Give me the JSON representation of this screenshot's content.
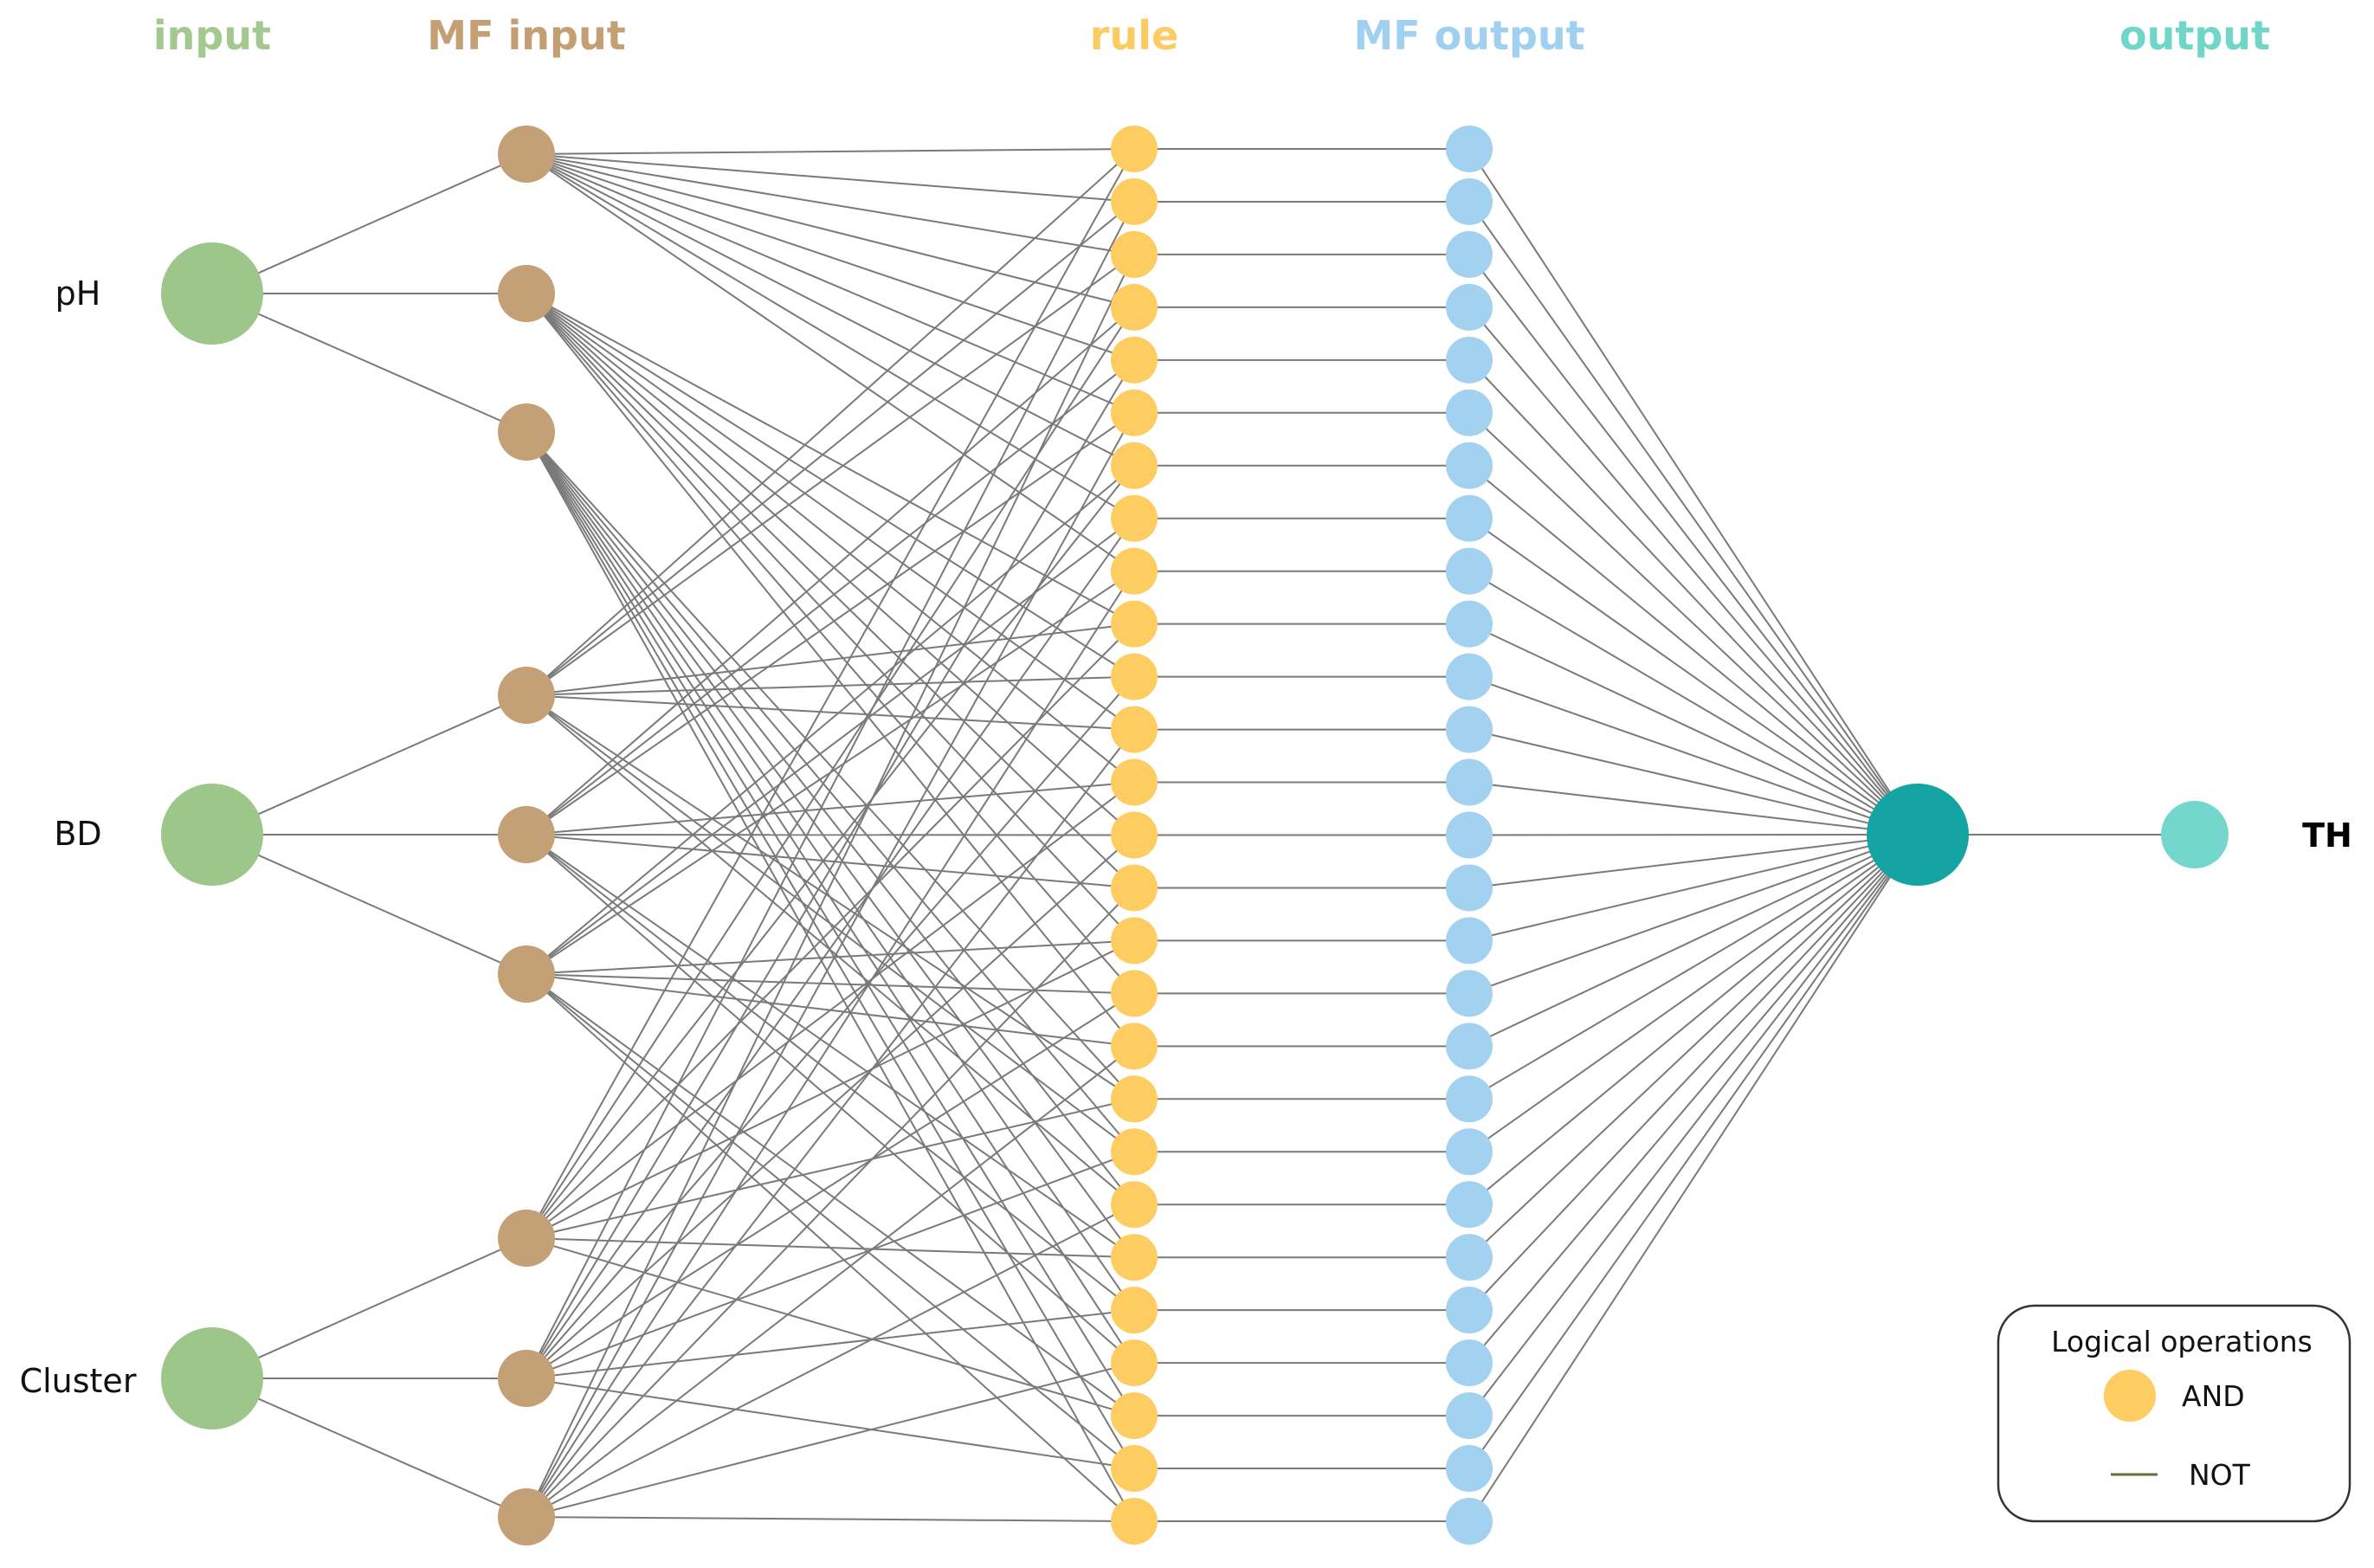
{
  "headers": {
    "input": "input",
    "mf_input": "MF input",
    "rule": "rule",
    "mf_output": "MF output",
    "output": "output"
  },
  "inputs": [
    "pH",
    "BD",
    "Cluster"
  ],
  "output_label": "TH",
  "legend": {
    "title": "Logical operations",
    "and_label": "AND",
    "not_label": "NOT"
  },
  "structure": {
    "mf_per_input": 3,
    "rule_count": 27,
    "mf_output_count": 27
  },
  "colors": {
    "input_header": "#a3c98f",
    "input_node": "#9dc78a",
    "mf_input_header": "#c49f73",
    "mf_input_node": "#c4a077",
    "rule_header": "#fccc63",
    "rule_node": "#fdcd62",
    "mf_output_header": "#9fd0f0",
    "mf_output_node": "#a3d1f0",
    "aggregator_node": "#13a4a3",
    "output_header": "#6fd6c8",
    "output_node": "#74d7cd",
    "edge": "#7a7a7a",
    "not_line": "#6b6a3c"
  }
}
